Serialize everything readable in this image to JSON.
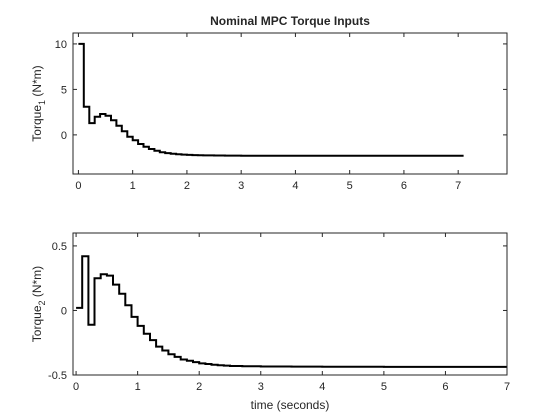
{
  "figure": {
    "background": "#ffffff",
    "axes_color": "#262626",
    "line_color": "#000000"
  },
  "chart_data": [
    {
      "type": "line",
      "step": true,
      "title": "Nominal MPC Torque Inputs",
      "xlabel": "",
      "ylabel": {
        "main": "Torque",
        "sub": "1",
        "unit": " (N*m)"
      },
      "xlim": [
        -0.1,
        7.9
      ],
      "ylim": [
        -4.3,
        11.2
      ],
      "xticks": [
        0,
        1,
        2,
        3,
        4,
        5,
        6,
        7
      ],
      "xticklabels": [
        "0",
        "1",
        "2",
        "3",
        "4",
        "5",
        "6",
        "7"
      ],
      "yticks": [
        0,
        5,
        10
      ],
      "yticklabels": [
        "0",
        "5",
        "10"
      ],
      "grid": false,
      "series": [
        {
          "x": [
            0,
            0.1,
            0.2,
            0.3,
            0.4,
            0.5,
            0.6,
            0.7,
            0.8,
            0.9,
            1.0,
            1.1,
            1.2,
            1.3,
            1.4,
            1.5,
            1.6,
            1.7,
            1.8,
            1.9,
            2.0,
            2.1,
            2.2,
            2.3,
            2.4,
            2.5,
            2.7,
            3.0,
            3.5,
            4.0,
            5.0,
            6.0,
            7.1
          ],
          "y": [
            10,
            3.1,
            1.3,
            2.0,
            2.3,
            2.1,
            1.6,
            1.0,
            0.4,
            -0.2,
            -0.6,
            -1.0,
            -1.3,
            -1.55,
            -1.75,
            -1.9,
            -2.0,
            -2.08,
            -2.13,
            -2.17,
            -2.2,
            -2.22,
            -2.24,
            -2.25,
            -2.26,
            -2.27,
            -2.28,
            -2.29,
            -2.3,
            -2.3,
            -2.3,
            -2.3,
            -2.3
          ]
        }
      ]
    },
    {
      "type": "line",
      "step": true,
      "title": "",
      "xlabel": "time (seconds)",
      "ylabel": {
        "main": "Torque",
        "sub": "2",
        "unit": " (N*m)"
      },
      "xlim": [
        -0.05,
        7.0
      ],
      "ylim": [
        -0.5,
        0.6
      ],
      "xticks": [
        0,
        1,
        2,
        3,
        4,
        5,
        6,
        7
      ],
      "xticklabels": [
        "0",
        "1",
        "2",
        "3",
        "4",
        "5",
        "6",
        "7"
      ],
      "yticks": [
        -0.5,
        0,
        0.5
      ],
      "yticklabels": [
        "-0.5",
        "0",
        "0.5"
      ],
      "grid": false,
      "series": [
        {
          "x": [
            0,
            0.1,
            0.2,
            0.3,
            0.4,
            0.5,
            0.6,
            0.7,
            0.8,
            0.9,
            1.0,
            1.1,
            1.2,
            1.3,
            1.4,
            1.5,
            1.6,
            1.7,
            1.8,
            1.9,
            2.0,
            2.1,
            2.2,
            2.3,
            2.4,
            2.5,
            2.7,
            3.0,
            3.5,
            4.0,
            5.0,
            6.0,
            7.0
          ],
          "y": [
            0.02,
            0.42,
            -0.11,
            0.25,
            0.28,
            0.27,
            0.2,
            0.13,
            0.04,
            -0.05,
            -0.12,
            -0.18,
            -0.23,
            -0.28,
            -0.31,
            -0.34,
            -0.36,
            -0.38,
            -0.39,
            -0.4,
            -0.41,
            -0.415,
            -0.42,
            -0.424,
            -0.427,
            -0.43,
            -0.432,
            -0.434,
            -0.435,
            -0.436,
            -0.437,
            -0.437,
            -0.437
          ]
        }
      ]
    }
  ]
}
